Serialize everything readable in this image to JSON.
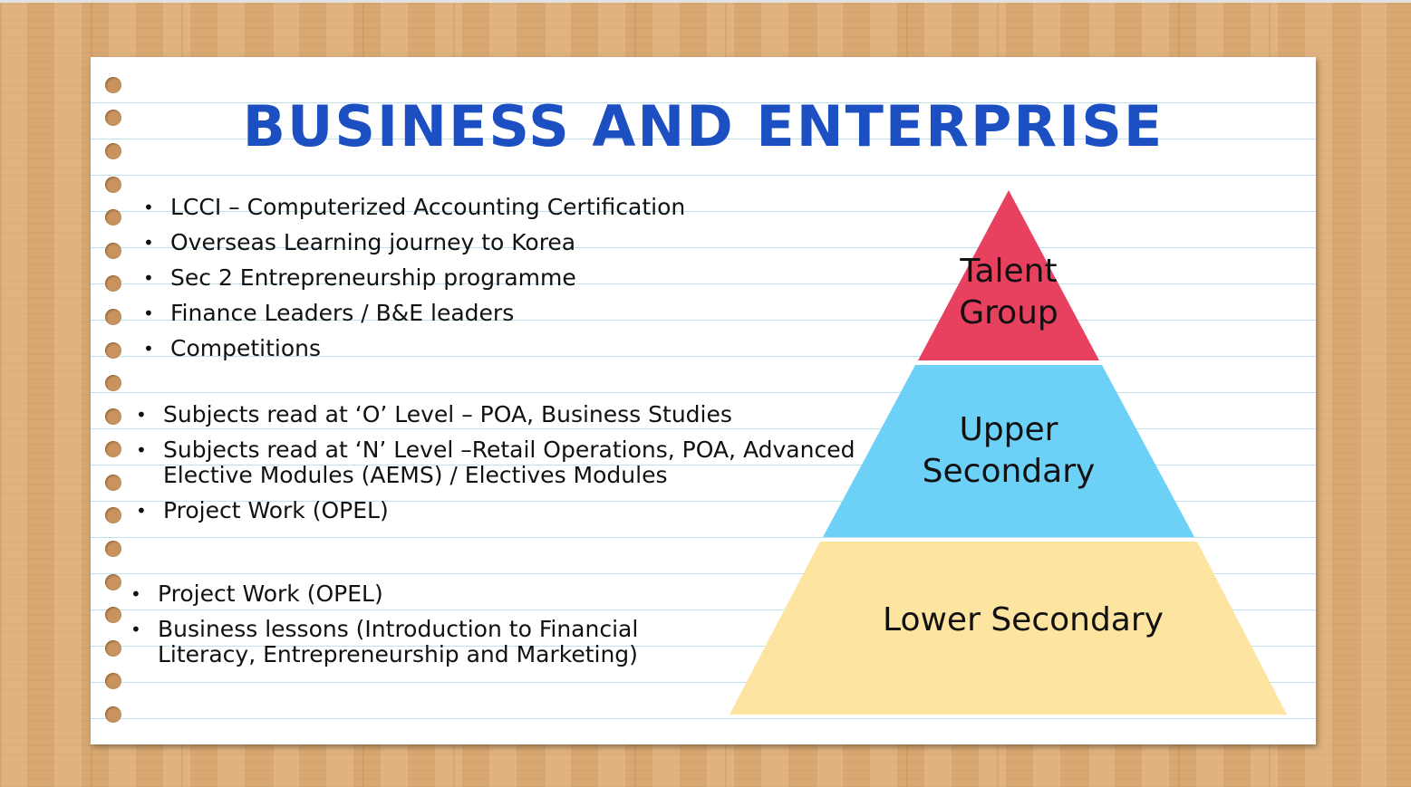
{
  "title": "BUSINESS AND ENTERPRISE",
  "talent_items": [
    "LCCI – Computerized Accounting Certification",
    "Overseas Learning journey to Korea",
    "Sec 2 Entrepreneurship programme",
    "Finance Leaders / B&E leaders",
    "Competitions"
  ],
  "upper_items": [
    "Subjects read at ‘O’ Level – POA, Business Studies",
    "Subjects read at ‘N’ Level –Retail Operations, POA, Advanced Elective Modules (AEMS) / Electives Modules",
    "Project Work (OPEL)"
  ],
  "lower_items": [
    "Project Work (OPEL)",
    "Business lessons (Introduction to Financial Literacy, Entrepreneurship and Marketing)"
  ],
  "pyramid": {
    "top_label": "Talent\nGroup",
    "middle_label": "Upper\nSecondary",
    "bottom_label": "Lower Secondary",
    "colors": {
      "top": "#e8405f",
      "middle": "#6dd1f7",
      "bottom": "#fde4a0"
    }
  }
}
